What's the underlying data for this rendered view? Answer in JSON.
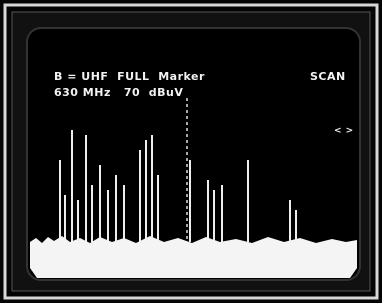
{
  "screen": {
    "line1": {
      "left": "B = UHF  FULL  Marker",
      "right": "SCAN"
    },
    "line2": "630 MHz   70  dBuV",
    "cursor": "< >"
  }
}
